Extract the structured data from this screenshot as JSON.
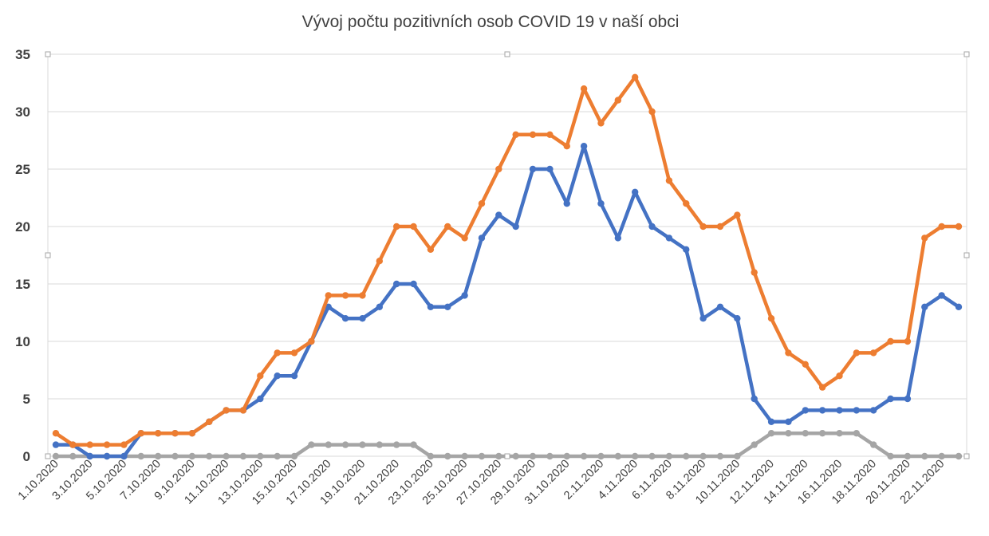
{
  "chart_data": {
    "type": "line",
    "title": "Vývoj počtu pozitivních osob COVID 19 v naší obci",
    "xlabel": "",
    "ylabel": "",
    "ylim": [
      0,
      35
    ],
    "yticks": [
      0,
      5,
      10,
      15,
      20,
      25,
      30,
      35
    ],
    "grid": true,
    "x": [
      "1.10.2020",
      "2.10.2020",
      "3.10.2020",
      "4.10.2020",
      "5.10.2020",
      "6.10.2020",
      "7.10.2020",
      "8.10.2020",
      "9.10.2020",
      "10.10.2020",
      "11.10.2020",
      "12.10.2020",
      "13.10.2020",
      "14.10.2020",
      "15.10.2020",
      "16.10.2020",
      "17.10.2020",
      "18.10.2020",
      "19.10.2020",
      "20.10.2020",
      "21.10.2020",
      "22.10.2020",
      "23.10.2020",
      "24.10.2020",
      "25.10.2020",
      "26.10.2020",
      "27.10.2020",
      "28.10.2020",
      "29.10.2020",
      "30.10.2020",
      "31.10.2020",
      "1.11.2020",
      "2.11.2020",
      "3.11.2020",
      "4.11.2020",
      "5.11.2020",
      "6.11.2020",
      "7.11.2020",
      "8.11.2020",
      "9.11.2020",
      "10.11.2020",
      "11.11.2020",
      "12.11.2020",
      "13.11.2020",
      "14.11.2020",
      "15.11.2020",
      "16.11.2020",
      "17.11.2020",
      "18.11.2020",
      "19.11.2020",
      "20.11.2020",
      "21.11.2020",
      "22.11.2020",
      "23.11.2020"
    ],
    "xtick_labels": [
      "1.10.2020",
      "3.10.2020",
      "5.10.2020",
      "7.10.2020",
      "9.10.2020",
      "11.10.2020",
      "13.10.2020",
      "15.10.2020",
      "17.10.2020",
      "19.10.2020",
      "21.10.2020",
      "23.10.2020",
      "25.10.2020",
      "27.10.2020",
      "29.10.2020",
      "31.10.2020",
      "2.11.2020",
      "4.11.2020",
      "6.11.2020",
      "8.11.2020",
      "10.11.2020",
      "12.11.2020",
      "14.11.2020",
      "16.11.2020",
      "18.11.2020",
      "20.11.2020",
      "22.11.2020"
    ],
    "series": [
      {
        "color": "#4472c4",
        "values": [
          1,
          1,
          0,
          0,
          0,
          2,
          2,
          2,
          2,
          3,
          4,
          4,
          5,
          7,
          7,
          10,
          13,
          12,
          12,
          13,
          15,
          15,
          13,
          13,
          14,
          19,
          21,
          20,
          25,
          25,
          22,
          27,
          22,
          19,
          23,
          20,
          19,
          18,
          12,
          13,
          12,
          5,
          3,
          3,
          4,
          4,
          4,
          4,
          4,
          5,
          5,
          13,
          14,
          13
        ]
      },
      {
        "color": "#ed7d31",
        "values": [
          2,
          1,
          1,
          1,
          1,
          2,
          2,
          2,
          2,
          3,
          4,
          4,
          7,
          9,
          9,
          10,
          14,
          14,
          14,
          17,
          20,
          20,
          18,
          20,
          19,
          22,
          25,
          28,
          28,
          28,
          27,
          32,
          29,
          31,
          33,
          30,
          24,
          22,
          20,
          20,
          21,
          16,
          12,
          9,
          8,
          6,
          7,
          9,
          9,
          10,
          10,
          19,
          20,
          20
        ]
      },
      {
        "color": "#a5a5a5",
        "values": [
          0,
          0,
          0,
          0,
          0,
          0,
          0,
          0,
          0,
          0,
          0,
          0,
          0,
          0,
          0,
          1,
          1,
          1,
          1,
          1,
          1,
          1,
          0,
          0,
          0,
          0,
          0,
          0,
          0,
          0,
          0,
          0,
          0,
          0,
          0,
          0,
          0,
          0,
          0,
          0,
          0,
          1,
          2,
          2,
          2,
          2,
          2,
          2,
          1,
          0,
          0,
          0,
          0,
          0
        ]
      }
    ]
  }
}
